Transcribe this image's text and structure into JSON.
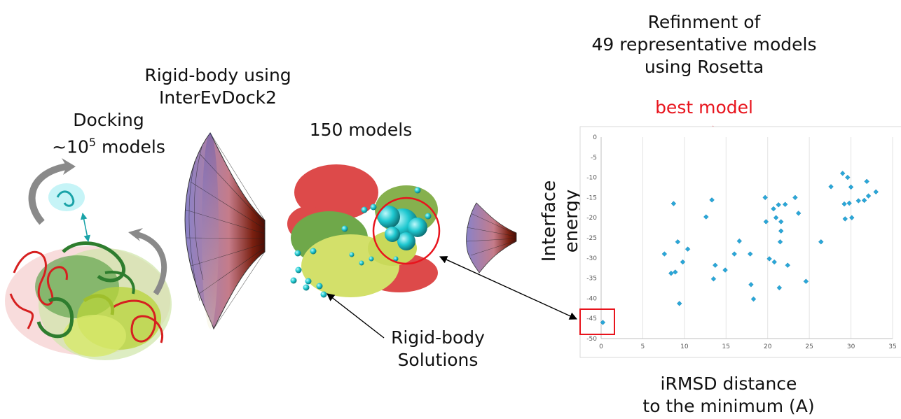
{
  "labels": {
    "docking_line1": "Docking",
    "docking_prefix": "~10",
    "docking_exp": "5",
    "docking_suffix": " models",
    "rigid_line1": "Rigid-body using",
    "rigid_line2": "InterEvDock2",
    "models150": "150 models",
    "solutions_line1": "Rigid-body",
    "solutions_line2": "Solutions",
    "refine_line1": "Refinment of",
    "refine_line2": "49 representative models",
    "refine_line3": "using Rosetta",
    "best_model": "best model",
    "xlabel_line1": "iRMSD distance",
    "xlabel_line2": "to the minimum (A)"
  },
  "colors": {
    "rna": "#d62020",
    "protein_dark": "#2e7d2e",
    "protein_light": "#b8d43a",
    "ligand": "#1ec8d0",
    "highlight": "#d62020",
    "point": "#2aa7d8"
  },
  "chart_data": {
    "type": "scatter",
    "title": "",
    "xlabel": "",
    "ylabel": "Interface energy",
    "xlim": [
      0,
      35
    ],
    "ylim": [
      -50,
      0
    ],
    "xticks": [
      0,
      5,
      10,
      15,
      20,
      25,
      30,
      35
    ],
    "yticks": [
      0,
      -5,
      -10,
      -15,
      -20,
      -25,
      -30,
      -35,
      -40,
      -45,
      -50
    ],
    "grid": "vertical",
    "series": [
      {
        "points": [
          [
            0.2,
            -46
          ],
          [
            8.7,
            -16.5
          ],
          [
            8.4,
            -33.8
          ],
          [
            8.9,
            -33.5
          ],
          [
            9.2,
            -26
          ],
          [
            7.6,
            -29
          ],
          [
            9.4,
            -41.3
          ],
          [
            9.8,
            -31
          ],
          [
            10.4,
            -27.8
          ],
          [
            12.6,
            -19.8
          ],
          [
            13.3,
            -15.6
          ],
          [
            13.5,
            -35.2
          ],
          [
            13.7,
            -31.8
          ],
          [
            14.9,
            -33
          ],
          [
            16.0,
            -29
          ],
          [
            16.6,
            -25.8
          ],
          [
            17.9,
            -29
          ],
          [
            18.0,
            -36.6
          ],
          [
            18.3,
            -40.2
          ],
          [
            19.7,
            -15
          ],
          [
            19.8,
            -21
          ],
          [
            20.2,
            -30.2
          ],
          [
            20.8,
            -31
          ],
          [
            20.7,
            -17.8
          ],
          [
            21.0,
            -20
          ],
          [
            21.3,
            -16.8
          ],
          [
            21.4,
            -37.4
          ],
          [
            21.6,
            -23.3
          ],
          [
            21.5,
            -26
          ],
          [
            21.6,
            -21
          ],
          [
            22.1,
            -16.7
          ],
          [
            22.4,
            -31.8
          ],
          [
            23.3,
            -15
          ],
          [
            23.7,
            -18.9
          ],
          [
            24.6,
            -35.8
          ],
          [
            26.4,
            -26
          ],
          [
            27.6,
            -12.3
          ],
          [
            29.0,
            -9
          ],
          [
            29.2,
            -16.6
          ],
          [
            29.3,
            -20.3
          ],
          [
            29.6,
            -10
          ],
          [
            29.8,
            -16.4
          ],
          [
            30.0,
            -12.4
          ],
          [
            30.1,
            -20
          ],
          [
            30.9,
            -15.8
          ],
          [
            31.6,
            -15.7
          ],
          [
            31.9,
            -11
          ],
          [
            32.1,
            -14.6
          ],
          [
            33.0,
            -13.6
          ]
        ]
      }
    ]
  }
}
